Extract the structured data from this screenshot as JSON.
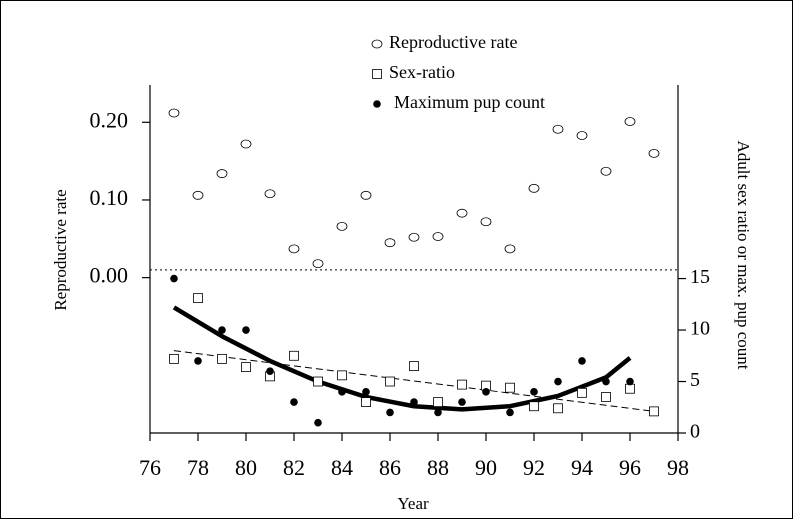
{
  "chart_data": {
    "type": "scatter",
    "x_label": "Year",
    "y_label": "Reproductive rate",
    "y2_label": "Adult sex ratio or max. pup count",
    "x": [
      77,
      78,
      79,
      80,
      81,
      82,
      83,
      84,
      85,
      86,
      87,
      88,
      89,
      90,
      91,
      92,
      93,
      94,
      95,
      96,
      97
    ],
    "series": [
      {
        "name": "Reproductive rate",
        "color": "#000000",
        "marker": "open-circle",
        "axis": "y",
        "values": [
          0.212,
          0.106,
          0.134,
          0.172,
          0.108,
          0.037,
          0.018,
          0.066,
          0.106,
          0.045,
          0.052,
          0.053,
          0.083,
          0.072,
          0.037,
          0.115,
          0.191,
          0.183,
          0.137,
          0.201,
          0.16
        ]
      },
      {
        "name": "Sex-ratio",
        "color": "#000000",
        "marker": "open-square",
        "axis": "y2",
        "values": [
          7.2,
          13.1,
          7.2,
          6.4,
          5.5,
          7.5,
          5.0,
          5.6,
          3.0,
          5.0,
          6.5,
          3.0,
          4.7,
          4.6,
          4.4,
          2.6,
          2.4,
          3.9,
          3.5,
          4.3,
          2.1
        ]
      },
      {
        "name": "Maximum pup count",
        "color": "#000000",
        "marker": "filled-circle",
        "axis": "y2",
        "values": [
          15,
          7,
          10,
          10,
          6,
          3,
          1,
          4,
          4,
          2,
          3,
          2,
          3,
          4,
          2,
          4,
          5,
          7,
          5,
          5,
          null
        ]
      }
    ],
    "fits": [
      {
        "style": "solid",
        "axis": "y2",
        "color": "#000000",
        "x": [
          77,
          79,
          81,
          83,
          85,
          87,
          89,
          91,
          93,
          95,
          96
        ],
        "values": [
          12.2,
          9.4,
          7.0,
          5.0,
          3.5,
          2.6,
          2.3,
          2.6,
          3.6,
          5.4,
          7.3
        ]
      },
      {
        "style": "dashed",
        "axis": "y2",
        "color": "#000000",
        "x": [
          77,
          97
        ],
        "values": [
          8.0,
          2.1
        ]
      }
    ],
    "reference_line": {
      "axis": "y",
      "value": 0.01,
      "style": "dotted"
    },
    "xlim": [
      76,
      98
    ],
    "xticks": [
      76,
      78,
      80,
      82,
      84,
      86,
      88,
      90,
      92,
      94,
      96,
      98
    ],
    "ylim": [
      -0.2,
      0.248
    ],
    "yticks": [
      {
        "value": 0,
        "label": "0.00"
      },
      {
        "value": 0.1,
        "label": "0.10"
      },
      {
        "value": 0.2,
        "label": "0.20"
      }
    ],
    "y2lim": [
      0,
      33.8
    ],
    "y2ticks": [
      0,
      5,
      10,
      15
    ],
    "legend": "top"
  }
}
